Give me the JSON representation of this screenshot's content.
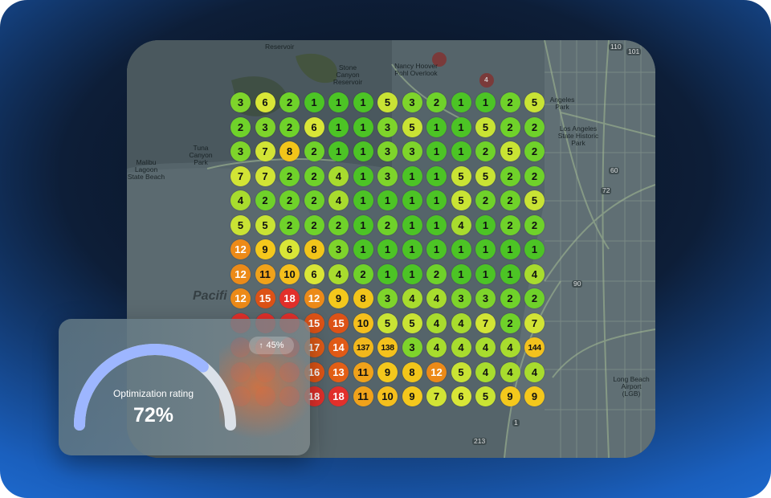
{
  "colors": {
    "1": "#4cc425",
    "2": "#6fd22a",
    "3": "#7ed42b",
    "4": "#a8dc2e",
    "5": "#c9e334",
    "6": "#d9e637",
    "7": "#d2e435",
    "8": "#f2c51a",
    "9": "#f4c81c",
    "10": "#f5bf1c",
    "11": "#f0a21a",
    "12": "#ec8a18",
    "13": "#e35f16",
    "14": "#e15a16",
    "15": "#dd5216",
    "16": "#e05516",
    "17": "#de5a17",
    "18": "#e2302b",
    "137": "#f2b81c",
    "138": "#f4c21c",
    "144": "#f3c21d",
    "red": "#e2302b"
  },
  "map_labels": {
    "reservoir": "Reservoir",
    "stone_canyon": "Stone Canyon Reservoir",
    "nancy_hoover": "Nancy Hoover Pohl Overlook",
    "tuna_canyon": "Tuna Canyon Park",
    "malibu_lagoon": "Malibu Lagoon State Beach",
    "la_state_historic": "Los Angeles State Historic Park",
    "angeles_park": "Angeles Park",
    "long_beach_airport": "Long Beach Airport (LGB)",
    "ocean": "Pacifi",
    "hwy_110": "110",
    "hwy_101": "101",
    "hwy_60": "60",
    "hwy_72": "72",
    "hwy_90": "90",
    "hwy_213": "213",
    "hwy_1": "1",
    "marker_4": "4"
  },
  "grid": {
    "rows": [
      [
        "3",
        "6",
        "2",
        "1",
        "1",
        "1",
        "5",
        "3",
        "2",
        "1",
        "1",
        "2",
        "5"
      ],
      [
        "2",
        "3",
        "2",
        "6",
        "1",
        "1",
        "3",
        "5",
        "1",
        "1",
        "5",
        "2",
        "2"
      ],
      [
        "3",
        "7",
        "8",
        "2",
        "1",
        "1",
        "3",
        "3",
        "1",
        "1",
        "2",
        "5",
        "2"
      ],
      [
        "7",
        "7",
        "2",
        "2",
        "4",
        "1",
        "3",
        "1",
        "1",
        "5",
        "5",
        "2",
        "2"
      ],
      [
        "4",
        "2",
        "2",
        "2",
        "4",
        "1",
        "1",
        "1",
        "1",
        "5",
        "2",
        "2",
        "5"
      ],
      [
        "5",
        "5",
        "2",
        "2",
        "2",
        "1",
        "2",
        "1",
        "1",
        "4",
        "1",
        "2",
        "2"
      ],
      [
        "12",
        "9",
        "6",
        "8",
        "3",
        "1",
        "1",
        "1",
        "1",
        "1",
        "1",
        "1",
        "1"
      ],
      [
        "12",
        "11",
        "10",
        "6",
        "4",
        "2",
        "1",
        "1",
        "2",
        "1",
        "1",
        "1",
        "4"
      ],
      [
        "12",
        "15",
        "18",
        "12",
        "9",
        "8",
        "3",
        "4",
        "4",
        "3",
        "3",
        "2",
        "2"
      ],
      [
        "",
        "",
        "",
        "15",
        "15",
        "10",
        "5",
        "5",
        "4",
        "4",
        "7",
        "2",
        "7"
      ],
      [
        "",
        "",
        "",
        "17",
        "14",
        "137",
        "138",
        "3",
        "4",
        "4",
        "4",
        "4",
        "144"
      ],
      [
        "",
        "",
        "",
        "16",
        "13",
        "11",
        "9",
        "8",
        "12",
        "5",
        "4",
        "4",
        "4"
      ],
      [
        "",
        "",
        "",
        "18",
        "18",
        "11",
        "10",
        "9",
        "7",
        "6",
        "5",
        "9",
        "9"
      ]
    ]
  },
  "rating_card": {
    "label": "Optimization rating",
    "value": "72%",
    "percent": 72,
    "change": "45%",
    "change_icon": "arrow-up-icon"
  }
}
